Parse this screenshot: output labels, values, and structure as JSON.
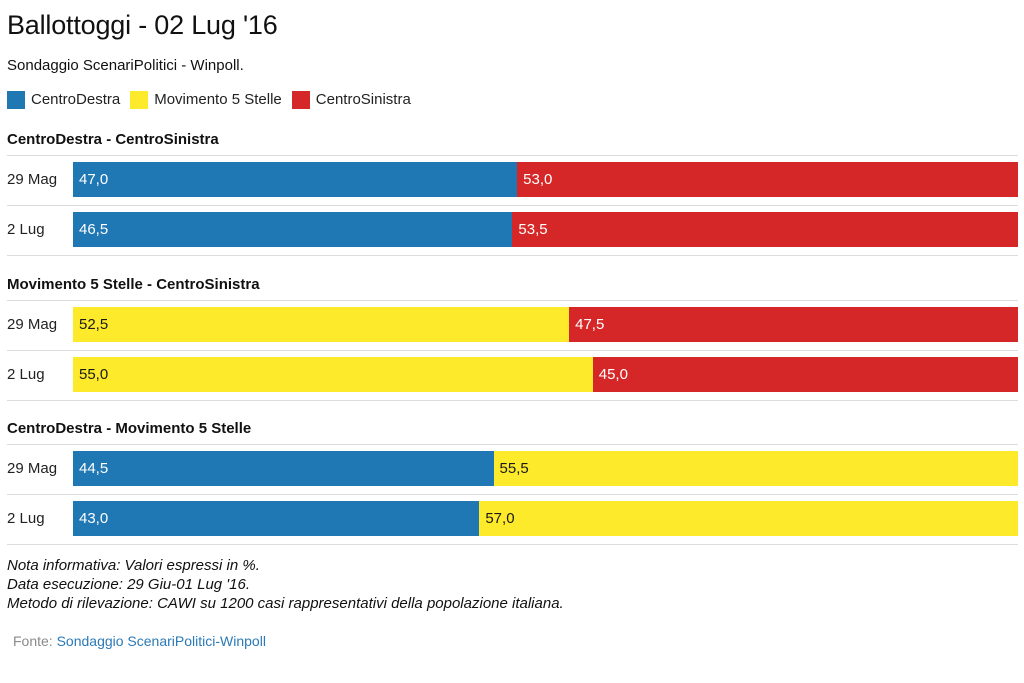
{
  "title": "Ballottoggi - 02 Lug '16",
  "subtitle": "Sondaggio ScenariPolitici - Winpoll.",
  "legend": [
    {
      "label": "CentroDestra",
      "color": "#1f77b4"
    },
    {
      "label": "Movimento 5 Stelle",
      "color": "#fdea2b"
    },
    {
      "label": "CentroSinistra",
      "color": "#d62728"
    }
  ],
  "chart_data": [
    {
      "type": "bar",
      "stacked": true,
      "orientation": "horizontal",
      "title": "CentroDestra - CentroSinistra",
      "categories": [
        "29 Mag",
        "2 Lug"
      ],
      "series": [
        {
          "name": "CentroDestra",
          "color": "#1f77b4",
          "values": [
            47.0,
            46.5
          ],
          "labels": [
            "47,0",
            "46,5"
          ]
        },
        {
          "name": "CentroSinistra",
          "color": "#d62728",
          "values": [
            53.0,
            53.5
          ],
          "labels": [
            "53,0",
            "53,5"
          ]
        }
      ]
    },
    {
      "type": "bar",
      "stacked": true,
      "orientation": "horizontal",
      "title": "Movimento 5 Stelle - CentroSinistra",
      "categories": [
        "29 Mag",
        "2 Lug"
      ],
      "series": [
        {
          "name": "Movimento 5 Stelle",
          "color": "#fdea2b",
          "values": [
            52.5,
            55.0
          ],
          "labels": [
            "52,5",
            "55,0"
          ]
        },
        {
          "name": "CentroSinistra",
          "color": "#d62728",
          "values": [
            47.5,
            45.0
          ],
          "labels": [
            "47,5",
            "45,0"
          ]
        }
      ]
    },
    {
      "type": "bar",
      "stacked": true,
      "orientation": "horizontal",
      "title": "CentroDestra - Movimento 5 Stelle",
      "categories": [
        "29 Mag",
        "2 Lug"
      ],
      "series": [
        {
          "name": "CentroDestra",
          "color": "#1f77b4",
          "values": [
            44.5,
            43.0
          ],
          "labels": [
            "44,5",
            "43,0"
          ]
        },
        {
          "name": "Movimento 5 Stelle",
          "color": "#fdea2b",
          "values": [
            55.5,
            57.0
          ],
          "labels": [
            "55,5",
            "57,0"
          ]
        }
      ]
    }
  ],
  "notes": [
    "Nota informativa: Valori espressi in %.",
    "Data esecuzione: 29 Giu-01 Lug '16.",
    "Metodo di rilevazione: CAWI su 1200 casi rappresentativi della popolazione italiana."
  ],
  "source": {
    "label": "Fonte:",
    "link_text": "Sondaggio ScenariPolitici-Winpoll"
  }
}
